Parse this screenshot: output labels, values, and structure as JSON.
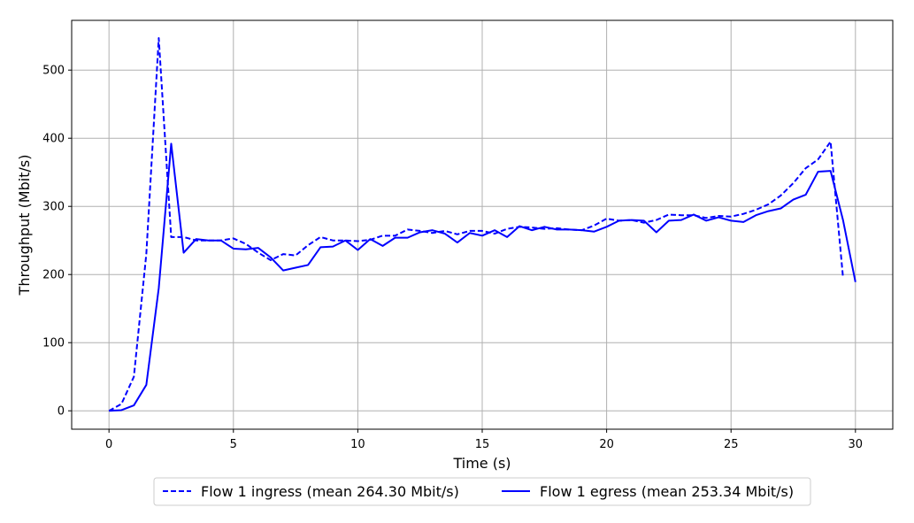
{
  "chart_data": {
    "type": "line",
    "title": "",
    "xlabel": "Time (s)",
    "ylabel": "Throughput (Mbit/s)",
    "xlim": [
      -1.5,
      31.5
    ],
    "ylim": [
      -27,
      573
    ],
    "x_ticks": [
      "0",
      "5",
      "10",
      "15",
      "20",
      "25",
      "30"
    ],
    "y_ticks": [
      "0",
      "100",
      "200",
      "300",
      "400",
      "500"
    ],
    "grid": true,
    "legend_position": "bottom-center-outside",
    "series": [
      {
        "name": "Flow 1 ingress (mean 264.30 Mbit/s)",
        "color": "#0000ff",
        "style": "dashed",
        "x": [
          0,
          0.5,
          1,
          1.5,
          2,
          2.5,
          3,
          3.5,
          4,
          4.5,
          5,
          5.5,
          6,
          6.5,
          7,
          7.5,
          8,
          8.5,
          9,
          9.5,
          10,
          10.5,
          11,
          11.5,
          12,
          12.5,
          13,
          13.5,
          14,
          14.5,
          15,
          15.5,
          16,
          16.5,
          17,
          17.5,
          18,
          18.5,
          19,
          19.5,
          20,
          20.5,
          21,
          21.5,
          22,
          22.5,
          23,
          23.5,
          24,
          24.5,
          25,
          25.5,
          26,
          26.5,
          27,
          27.5,
          28,
          28.5,
          29,
          29.5
        ],
        "y": [
          0,
          10,
          50,
          230,
          547,
          255,
          255,
          250,
          250,
          250,
          253,
          245,
          232,
          221,
          230,
          228,
          243,
          255,
          250,
          250,
          249,
          251,
          257,
          257,
          266,
          264,
          261,
          264,
          259,
          264,
          264,
          260,
          267,
          270,
          269,
          267,
          268,
          266,
          265,
          272,
          282,
          279,
          280,
          276,
          280,
          288,
          287,
          287,
          283,
          286,
          285,
          289,
          295,
          303,
          316,
          334,
          356,
          369,
          395,
          196
        ]
      },
      {
        "name": "Flow 1 egress (mean 253.34 Mbit/s)",
        "color": "#0000ff",
        "style": "solid",
        "x": [
          0,
          0.5,
          1,
          1.5,
          2,
          2.5,
          3,
          3.5,
          4,
          4.5,
          5,
          5.5,
          6,
          6.5,
          7,
          7.5,
          8,
          8.5,
          9,
          9.5,
          10,
          10.5,
          11,
          11.5,
          12,
          12.5,
          13,
          13.5,
          14,
          14.5,
          15,
          15.5,
          16,
          16.5,
          17,
          17.5,
          18,
          18.5,
          19,
          19.5,
          20,
          20.5,
          21,
          21.5,
          22,
          22.5,
          23,
          23.5,
          24,
          24.5,
          25,
          25.5,
          26,
          26.5,
          27,
          27.5,
          28,
          28.5,
          29,
          29.5,
          30
        ],
        "y": [
          0,
          1,
          8,
          38,
          180,
          392,
          232,
          252,
          250,
          250,
          238,
          237,
          239,
          225,
          206,
          210,
          214,
          240,
          241,
          250,
          236,
          252,
          242,
          254,
          254,
          262,
          265,
          260,
          247,
          261,
          257,
          265,
          255,
          271,
          265,
          270,
          266,
          266,
          265,
          263,
          270,
          279,
          280,
          279,
          262,
          279,
          280,
          288,
          279,
          284,
          279,
          277,
          287,
          293,
          297,
          310,
          317,
          351,
          352,
          280,
          189
        ]
      }
    ]
  }
}
